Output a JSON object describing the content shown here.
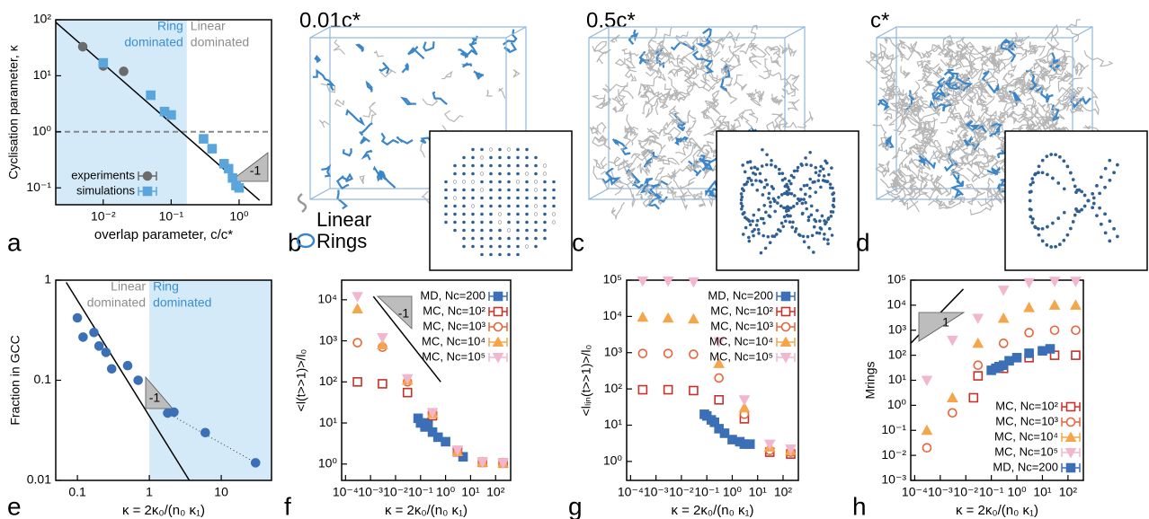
{
  "chart_data": [
    {
      "type": "scatter",
      "label": "a",
      "xlabel": "overlap parameter, c/c*",
      "ylabel": "Cyclisation parameter, κ",
      "log_x": true,
      "log_y": true,
      "xlim": [
        0.002,
        3
      ],
      "ylim": [
        0.05,
        100
      ],
      "xticks": [
        {
          "value": 0.01,
          "label": "10⁻²"
        },
        {
          "value": 0.1,
          "label": "10⁻¹"
        },
        {
          "value": 1,
          "label": "10⁰"
        }
      ],
      "yticks": [
        {
          "value": 0.1,
          "label": "10⁻¹"
        },
        {
          "value": 1,
          "label": "10⁰"
        },
        {
          "value": 10,
          "label": "10¹"
        },
        {
          "value": 100,
          "label": "10²"
        }
      ],
      "shaded_region": {
        "x": [
          0.002,
          0.17
        ],
        "color": "#d4eaf8"
      },
      "region_labels": [
        {
          "lines": [
            "Ring",
            "dominated"
          ],
          "color": "#3a8fd0"
        },
        {
          "lines": [
            "Linear",
            "dominated"
          ],
          "color": "#8c8c8c"
        }
      ],
      "guide_line": {
        "x": [
          0.002,
          2
        ],
        "y": [
          90,
          0.06
        ]
      },
      "dashed_y": 1,
      "slope_label": "-1",
      "legend": "lower left",
      "series": [
        {
          "name": "experiments",
          "color": "#6b6b6b",
          "marker": "circle",
          "x": [
            0.005,
            0.01,
            0.02
          ],
          "y": [
            33,
            15,
            12
          ]
        },
        {
          "name": "simulations",
          "color": "#5aa5dc",
          "marker": "square",
          "x": [
            0.01,
            0.05,
            0.08,
            0.1,
            0.3,
            0.4,
            0.6,
            0.7,
            0.8,
            0.9,
            1.0
          ],
          "y": [
            17,
            4.5,
            2.3,
            2.0,
            0.75,
            0.5,
            0.27,
            0.22,
            0.15,
            0.11,
            0.1
          ]
        }
      ]
    },
    {
      "type": "scatter",
      "label": "e",
      "xlabel": "κ = 2κ₀/(n₀ κ₁)",
      "ylabel": "Fraction in GCC",
      "log_x": true,
      "log_y": true,
      "xlim": [
        0.05,
        50
      ],
      "ylim": [
        0.01,
        1
      ],
      "xticks": [
        0.1,
        1,
        10
      ],
      "yticks": [
        0.01,
        0.1,
        1
      ],
      "shaded_region": {
        "x": [
          1,
          50
        ],
        "color": "#d4eaf8"
      },
      "region_labels": [
        {
          "lines": [
            "Linear",
            "dominated"
          ],
          "color": "#8c8c8c"
        },
        {
          "lines": [
            "Ring",
            "dominated"
          ],
          "color": "#3a8fd0"
        }
      ],
      "guide_line": {
        "x": [
          0.07,
          3.6
        ],
        "y": [
          0.95,
          0.01
        ]
      },
      "dotted_line": {
        "x": [
          1.8,
          30
        ],
        "y": [
          0.047,
          0.015
        ]
      },
      "slope_label": "-1",
      "series": [
        {
          "color": "#3b6fb6",
          "marker": "circle",
          "x": [
            0.1,
            0.12,
            0.17,
            0.2,
            0.25,
            0.3,
            0.5,
            0.7,
            1.8,
            2.2,
            6,
            30
          ],
          "y": [
            0.42,
            0.27,
            0.3,
            0.22,
            0.19,
            0.13,
            0.14,
            0.1,
            0.047,
            0.048,
            0.03,
            0.015
          ]
        }
      ]
    },
    {
      "type": "scatter",
      "label": "f",
      "xlabel": "κ = 2κ₀/(n₀ κ₁)",
      "ylabel": "<l(t>>1)>/l₀",
      "log_x": true,
      "log_y": true,
      "xlim": [
        7e-05,
        400
      ],
      "ylim": [
        0.4,
        30000
      ],
      "xticks": [
        {
          "value": 0.0001,
          "label": "10⁻⁴"
        },
        {
          "value": 0.001,
          "label": "10⁻³"
        },
        {
          "value": 0.01,
          "label": "10⁻²"
        },
        {
          "value": 0.1,
          "label": "10⁻¹"
        },
        {
          "value": 1,
          "label": "10⁰"
        },
        {
          "value": 10,
          "label": "10¹"
        },
        {
          "value": 100,
          "label": "10²"
        }
      ],
      "yticks": [
        {
          "value": 1,
          "label": "10⁰"
        },
        {
          "value": 10,
          "label": "10¹"
        },
        {
          "value": 100,
          "label": "10²"
        },
        {
          "value": 1000,
          "label": "10³"
        },
        {
          "value": 10000,
          "label": "10⁴"
        }
      ],
      "guide_line": {
        "x": [
          0.0013,
          0.64
        ],
        "y": [
          12000,
          100
        ]
      },
      "slope_label": "-1",
      "legend": "upper right",
      "series": [
        {
          "name": "MD, Nc=200",
          "color": "#3b6fb6",
          "marker": "square",
          "x": [
            0.08,
            0.1,
            0.15,
            0.2,
            0.3,
            0.5,
            1,
            3,
            5
          ],
          "y": [
            13,
            10,
            8,
            10,
            6,
            4.5,
            3.5,
            2,
            1.5
          ]
        },
        {
          "name": "MC, Nc=10²",
          "color": "#c8312a",
          "marker": "open-square",
          "x": [
            0.0003,
            0.003,
            0.03,
            0.3,
            3,
            30,
            200
          ],
          "y": [
            100,
            90,
            55,
            15,
            2,
            1.1,
            1.05
          ]
        },
        {
          "name": "MC, Nc=10³",
          "color": "#e8643c",
          "marker": "open-circle",
          "x": [
            0.0003,
            0.003,
            0.03,
            0.3,
            3,
            30,
            200
          ],
          "y": [
            900,
            700,
            100,
            17,
            2,
            1.1,
            1.05
          ]
        },
        {
          "name": "MC, Nc=10⁴",
          "color": "#f5a54a",
          "marker": "triangle",
          "x": [
            0.0003,
            0.003,
            0.03,
            0.3,
            3,
            30,
            200
          ],
          "y": [
            6000,
            800,
            110,
            17,
            2,
            1.1,
            1.05
          ]
        },
        {
          "name": "MC, Nc=10⁵",
          "color": "#f2b6cf",
          "marker": "down-triangle",
          "x": [
            0.0003,
            0.003,
            0.03,
            0.3,
            3,
            30,
            200
          ],
          "y": [
            12000,
            1200,
            120,
            18,
            2.2,
            1.1,
            1.05
          ]
        }
      ]
    },
    {
      "type": "scatter",
      "label": "g",
      "xlabel": "κ = 2κ₀/(n₀ κ₁)",
      "ylabel": "<lₗᵢₙ(t>>1)>/l₀",
      "log_x": true,
      "log_y": true,
      "xlim": [
        7e-05,
        400
      ],
      "ylim": [
        0.3,
        100000
      ],
      "xticks": [
        {
          "value": 0.0001,
          "label": "10⁻⁴"
        },
        {
          "value": 0.001,
          "label": "10⁻³"
        },
        {
          "value": 0.01,
          "label": "10⁻²"
        },
        {
          "value": 0.1,
          "label": "10⁻¹"
        },
        {
          "value": 1,
          "label": "10⁰"
        },
        {
          "value": 10,
          "label": "10¹"
        },
        {
          "value": 100,
          "label": "10²"
        }
      ],
      "yticks": [
        {
          "value": 1,
          "label": "10⁰"
        },
        {
          "value": 10,
          "label": "10¹"
        },
        {
          "value": 100,
          "label": "10²"
        },
        {
          "value": 1000,
          "label": "10³"
        },
        {
          "value": 10000,
          "label": "10⁴"
        },
        {
          "value": 100000,
          "label": "10⁵"
        }
      ],
      "legend": "upper right",
      "series": [
        {
          "name": "MD, Nc=200",
          "color": "#3b6fb6",
          "marker": "square",
          "x": [
            0.08,
            0.1,
            0.15,
            0.2,
            0.3,
            0.5,
            1,
            2,
            3,
            5
          ],
          "y": [
            20,
            18,
            14,
            12,
            8,
            6,
            4,
            3.5,
            3,
            3
          ]
        },
        {
          "name": "MC, Nc=10²",
          "color": "#c8312a",
          "marker": "open-square",
          "x": [
            0.0003,
            0.003,
            0.03,
            0.3,
            3,
            30,
            200
          ],
          "y": [
            95,
            95,
            90,
            50,
            15,
            1.8,
            1.6
          ]
        },
        {
          "name": "MC, Nc=10³",
          "color": "#e8643c",
          "marker": "open-circle",
          "x": [
            0.0003,
            0.003,
            0.03,
            0.3,
            3,
            30,
            200
          ],
          "y": [
            950,
            950,
            900,
            200,
            20,
            2,
            1.8
          ]
        },
        {
          "name": "MC, Nc=10⁴",
          "color": "#f5a54a",
          "marker": "triangle",
          "x": [
            0.0003,
            0.003,
            0.03,
            0.3,
            3,
            30,
            200
          ],
          "y": [
            9500,
            9000,
            8500,
            500,
            30,
            2.5,
            2
          ]
        },
        {
          "name": "MC, Nc=10⁵",
          "color": "#f2b6cf",
          "marker": "down-triangle",
          "x": [
            0.0003,
            0.003,
            0.03,
            0.3,
            3,
            30,
            200
          ],
          "y": [
            95000,
            95000,
            90000,
            2000,
            50,
            3,
            2.2
          ]
        }
      ]
    },
    {
      "type": "scatter",
      "label": "h",
      "xlabel": "κ = 2κ₀/(n₀ κ₁)",
      "ylabel": "Mrings",
      "log_x": true,
      "log_y": true,
      "xlim": [
        7e-05,
        400
      ],
      "ylim": [
        0.001,
        100000
      ],
      "xticks": [
        {
          "value": 0.0001,
          "label": "10⁻⁴"
        },
        {
          "value": 0.001,
          "label": "10⁻³"
        },
        {
          "value": 0.01,
          "label": "10⁻²"
        },
        {
          "value": 0.1,
          "label": "10⁻¹"
        },
        {
          "value": 1,
          "label": "10⁰"
        },
        {
          "value": 10,
          "label": "10¹"
        },
        {
          "value": 100,
          "label": "10²"
        }
      ],
      "yticks": [
        {
          "value": 0.001,
          "label": "10⁻³"
        },
        {
          "value": 0.01,
          "label": "10⁻²"
        },
        {
          "value": 0.1,
          "label": "10⁻¹"
        },
        {
          "value": 1,
          "label": "10⁰"
        },
        {
          "value": 10,
          "label": "10¹"
        },
        {
          "value": 100,
          "label": "10²"
        },
        {
          "value": 1000,
          "label": "10³"
        },
        {
          "value": 10000,
          "label": "10⁴"
        },
        {
          "value": 100000,
          "label": "10⁵"
        }
      ],
      "guide_line": {
        "x": [
          7e-05,
          0.008
        ],
        "y": [
          300,
          44000
        ]
      },
      "slope_label": "1",
      "legend": "lower right",
      "series": [
        {
          "name": "MC, Nc=10²",
          "color": "#c8312a",
          "marker": "open-square",
          "x": [
            0.02,
            0.03,
            0.3,
            3,
            30,
            200
          ],
          "y": [
            2,
            15,
            30,
            80,
            100,
            100
          ]
        },
        {
          "name": "MC, Nc=10³",
          "color": "#e8643c",
          "marker": "open-circle",
          "x": [
            0.0003,
            0.003,
            0.03,
            0.3,
            3,
            30,
            200
          ],
          "y": [
            0.02,
            0.5,
            40,
            300,
            800,
            1000,
            1000
          ]
        },
        {
          "name": "MC, Nc=10⁴",
          "color": "#f5a54a",
          "marker": "triangle",
          "x": [
            0.0003,
            0.003,
            0.03,
            0.3,
            3,
            30,
            200
          ],
          "y": [
            0.1,
            2,
            300,
            3000,
            8000,
            10000,
            10000
          ]
        },
        {
          "name": "MC, Nc=10⁵",
          "color": "#f2b6cf",
          "marker": "down-triangle",
          "x": [
            0.0003,
            0.003,
            0.03,
            0.3,
            3,
            30,
            200
          ],
          "y": [
            10,
            400,
            3000,
            40000,
            80000,
            90000,
            90000
          ]
        },
        {
          "name": "MD, Nc=200",
          "color": "#3b6fb6",
          "marker": "square",
          "x": [
            0.1,
            0.15,
            0.2,
            0.3,
            0.5,
            1,
            3,
            10,
            20
          ],
          "y": [
            25,
            30,
            35,
            40,
            60,
            80,
            120,
            150,
            180
          ]
        }
      ]
    }
  ],
  "snapshots": [
    {
      "label": "b",
      "title": "0.01c*"
    },
    {
      "label": "c",
      "title": "0.5c*"
    },
    {
      "label": "d",
      "title": "c*"
    }
  ],
  "snapshot_legend": [
    "Linear",
    "Rings"
  ]
}
